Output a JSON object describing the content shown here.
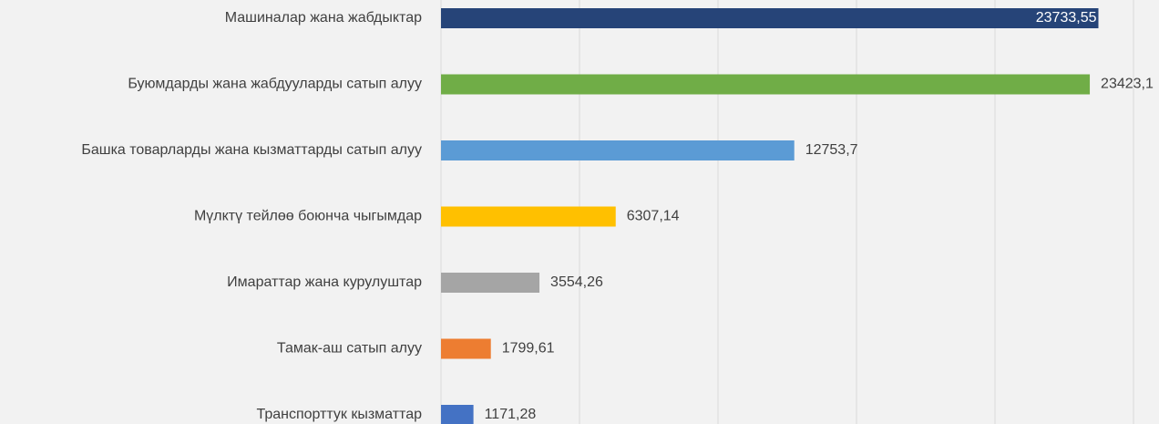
{
  "chart_data": {
    "type": "barh",
    "categories": [
      "Машиналар жана жабдыктар",
      "Буюмдарды жана жабдууларды сатып алуу",
      "Башка товарларды жана кызматтарды сатып алуу",
      "Мүлктү тейлөө боюнча чыгымдар",
      "Имараттар жана курулуштар",
      "Тамак-аш сатып алуу",
      "Транспорттук кызматтар"
    ],
    "values": [
      23733.55,
      23423.1,
      12753.7,
      6307.14,
      3554.26,
      1799.61,
      1171.28
    ],
    "value_labels": [
      "23733,55",
      "23423,1",
      "12753,7",
      "6307,14",
      "3554,26",
      "1799,61",
      "1171,28"
    ],
    "colors": [
      "#264478",
      "#70ad47",
      "#5b9bd5",
      "#ffc000",
      "#a5a5a5",
      "#ed7d31",
      "#4472c4"
    ],
    "xlim": [
      0,
      25000
    ],
    "xticks": [
      0,
      5000,
      10000,
      15000,
      20000,
      25000
    ],
    "grid": true
  }
}
